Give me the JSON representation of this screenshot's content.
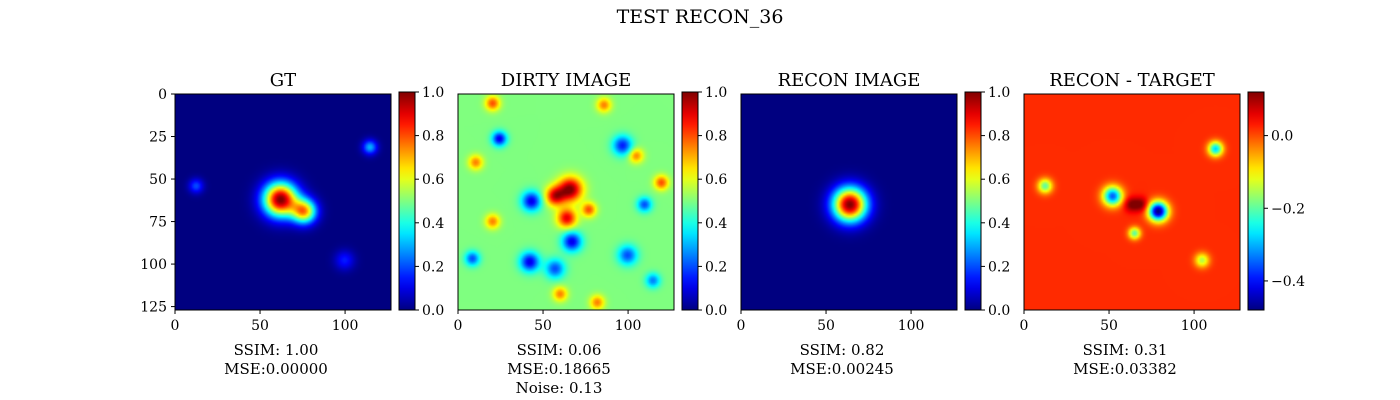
{
  "figure_title": "TEST RECON_36",
  "colormap": "jet",
  "chart_data": [
    {
      "type": "heatmap",
      "title": "GT",
      "x_ticks": [
        0,
        50,
        100
      ],
      "y_ticks": [
        0,
        25,
        50,
        75,
        100,
        125
      ],
      "xlim": [
        0,
        127
      ],
      "ylim": [
        127,
        0
      ],
      "colorbar": {
        "range": [
          0,
          1
        ],
        "ticks": [
          "0.0",
          "0.2",
          "0.4",
          "0.6",
          "0.8",
          "1.0"
        ]
      },
      "metrics": [
        "SSIM: 1.00",
        "MSE:0.00000"
      ],
      "features": [
        {
          "x": 62,
          "y": 62,
          "value": 1.0,
          "sigma": 7
        },
        {
          "x": 76,
          "y": 69,
          "value": 0.7,
          "sigma": 5
        },
        {
          "x": 115,
          "y": 31,
          "value": 0.3,
          "sigma": 3
        },
        {
          "x": 12,
          "y": 54,
          "value": 0.2,
          "sigma": 3
        },
        {
          "x": 100,
          "y": 98,
          "value": 0.15,
          "sigma": 4
        }
      ]
    },
    {
      "type": "heatmap",
      "title": "DIRTY IMAGE",
      "x_ticks": [
        0,
        50,
        100
      ],
      "xlim": [
        0,
        127
      ],
      "ylim": [
        127,
        0
      ],
      "colorbar": {
        "range": [
          0,
          1
        ],
        "ticks": [
          "0.0",
          "0.2",
          "0.4",
          "0.6",
          "0.8",
          "1.0"
        ]
      },
      "metrics": [
        "SSIM: 0.06",
        "MSE:0.18665",
        "Noise: 0.13"
      ],
      "background_value": 0.5,
      "features": [
        {
          "x": 66,
          "y": 56,
          "value": 1.0,
          "sigma": 5
        },
        {
          "x": 57,
          "y": 60,
          "value": 0.9,
          "sigma": 4
        },
        {
          "x": 64,
          "y": 73,
          "value": 0.9,
          "sigma": 4
        },
        {
          "x": 77,
          "y": 68,
          "value": 0.8,
          "sigma": 3
        },
        {
          "x": 43,
          "y": 63,
          "value": 0.1,
          "sigma": 4
        },
        {
          "x": 67,
          "y": 87,
          "value": 0.1,
          "sigma": 4
        },
        {
          "x": 42,
          "y": 99,
          "value": 0.1,
          "sigma": 4
        },
        {
          "x": 24,
          "y": 26,
          "value": 0.1,
          "sigma": 3
        },
        {
          "x": 97,
          "y": 30,
          "value": 0.15,
          "sigma": 4
        },
        {
          "x": 110,
          "y": 65,
          "value": 0.2,
          "sigma": 3
        },
        {
          "x": 8,
          "y": 97,
          "value": 0.2,
          "sigma": 3
        },
        {
          "x": 100,
          "y": 95,
          "value": 0.2,
          "sigma": 4
        },
        {
          "x": 57,
          "y": 103,
          "value": 0.2,
          "sigma": 4
        },
        {
          "x": 115,
          "y": 110,
          "value": 0.25,
          "sigma": 3
        },
        {
          "x": 20,
          "y": 5,
          "value": 0.8,
          "sigma": 3
        },
        {
          "x": 86,
          "y": 6,
          "value": 0.75,
          "sigma": 3
        },
        {
          "x": 20,
          "y": 75,
          "value": 0.75,
          "sigma": 3
        },
        {
          "x": 120,
          "y": 52,
          "value": 0.8,
          "sigma": 3
        },
        {
          "x": 10,
          "y": 40,
          "value": 0.75,
          "sigma": 3
        },
        {
          "x": 82,
          "y": 123,
          "value": 0.75,
          "sigma": 3
        },
        {
          "x": 60,
          "y": 118,
          "value": 0.75,
          "sigma": 3
        },
        {
          "x": 105,
          "y": 36,
          "value": 0.75,
          "sigma": 3
        }
      ]
    },
    {
      "type": "heatmap",
      "title": "RECON IMAGE",
      "x_ticks": [
        0,
        50,
        100
      ],
      "xlim": [
        0,
        127
      ],
      "ylim": [
        127,
        0
      ],
      "colorbar": {
        "range": [
          0,
          1
        ],
        "ticks": [
          "0.0",
          "0.2",
          "0.4",
          "0.6",
          "0.8",
          "1.0"
        ]
      },
      "metrics": [
        "SSIM: 0.82",
        "MSE:0.00245"
      ],
      "features": [
        {
          "x": 64,
          "y": 65,
          "value": 1.0,
          "sigma": 7
        }
      ]
    },
    {
      "type": "heatmap",
      "title": "RECON - TARGET",
      "x_ticks": [
        0,
        50,
        100
      ],
      "xlim": [
        0,
        127
      ],
      "ylim": [
        127,
        0
      ],
      "colorbar": {
        "range": [
          -0.48,
          0.12
        ],
        "ticks": [
          "0.0",
          "−0.2",
          "−0.4"
        ],
        "tick_values": [
          0,
          -0.2,
          -0.4
        ]
      },
      "metrics": [
        "SSIM: 0.31",
        "MSE:0.03382"
      ],
      "background_value": 0.02,
      "features": [
        {
          "x": 79,
          "y": 69,
          "value": -0.48,
          "sigma": 4
        },
        {
          "x": 52,
          "y": 60,
          "value": -0.35,
          "sigma": 4
        },
        {
          "x": 63,
          "y": 65,
          "value": 0.12,
          "sigma": 3
        },
        {
          "x": 69,
          "y": 65,
          "value": 0.12,
          "sigma": 3
        },
        {
          "x": 113,
          "y": 32,
          "value": -0.28,
          "sigma": 3
        },
        {
          "x": 12,
          "y": 54,
          "value": -0.2,
          "sigma": 3
        },
        {
          "x": 65,
          "y": 82,
          "value": -0.2,
          "sigma": 2.5
        },
        {
          "x": 105,
          "y": 98,
          "value": -0.15,
          "sigma": 3
        }
      ]
    }
  ]
}
